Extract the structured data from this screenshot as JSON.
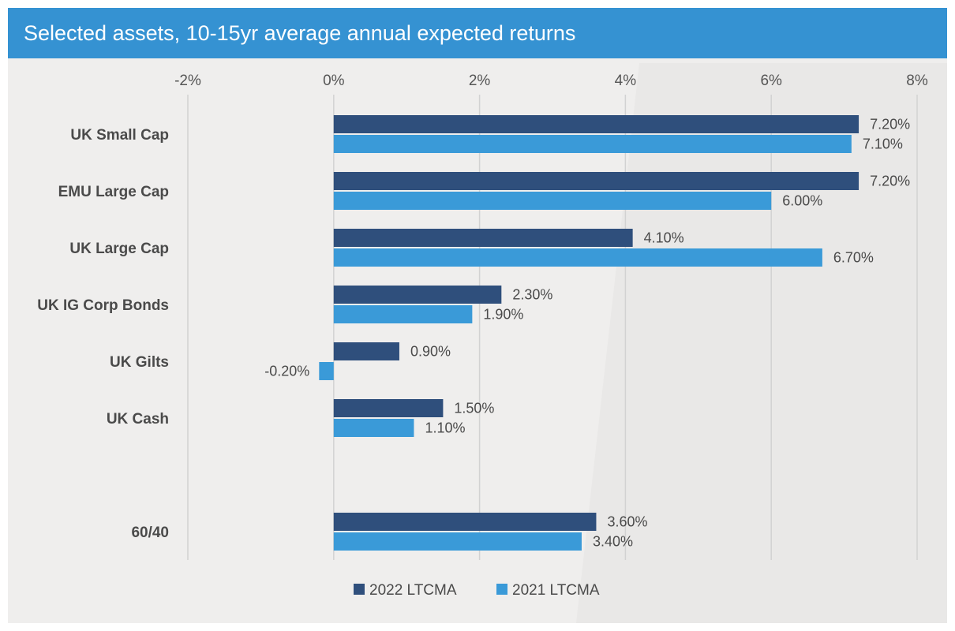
{
  "chart_data": {
    "type": "bar",
    "orientation": "horizontal",
    "title": "Selected assets, 10-15yr average annual expected returns",
    "categories": [
      "UK Small Cap",
      "EMU Large Cap",
      "UK Large Cap",
      "UK IG Corp Bonds",
      "UK Gilts",
      "UK Cash",
      "",
      "60/40"
    ],
    "series": [
      {
        "name": "2022 LTCMA",
        "color": "#2f4f7c",
        "values": [
          7.2,
          7.2,
          4.1,
          2.3,
          0.9,
          1.5,
          null,
          3.6
        ],
        "labels": [
          "7.20%",
          "7.20%",
          "4.10%",
          "2.30%",
          "0.90%",
          "1.50%",
          "",
          "3.60%"
        ]
      },
      {
        "name": "2021 LTCMA",
        "color": "#3a9ad8",
        "values": [
          7.1,
          6.0,
          6.7,
          1.9,
          -0.2,
          1.1,
          null,
          3.4
        ],
        "labels": [
          "7.10%",
          "6.00%",
          "6.70%",
          "1.90%",
          "-0.20%",
          "1.10%",
          "",
          "3.40%"
        ]
      }
    ],
    "xlim": [
      -2,
      8
    ],
    "xticks": [
      -2,
      0,
      2,
      4,
      6,
      8
    ],
    "xtick_labels": [
      "-2%",
      "0%",
      "2%",
      "4%",
      "6%",
      "8%"
    ],
    "xaxis_position": "top",
    "grid": true,
    "legend": "bottom-center",
    "xlabel": "",
    "ylabel": ""
  }
}
